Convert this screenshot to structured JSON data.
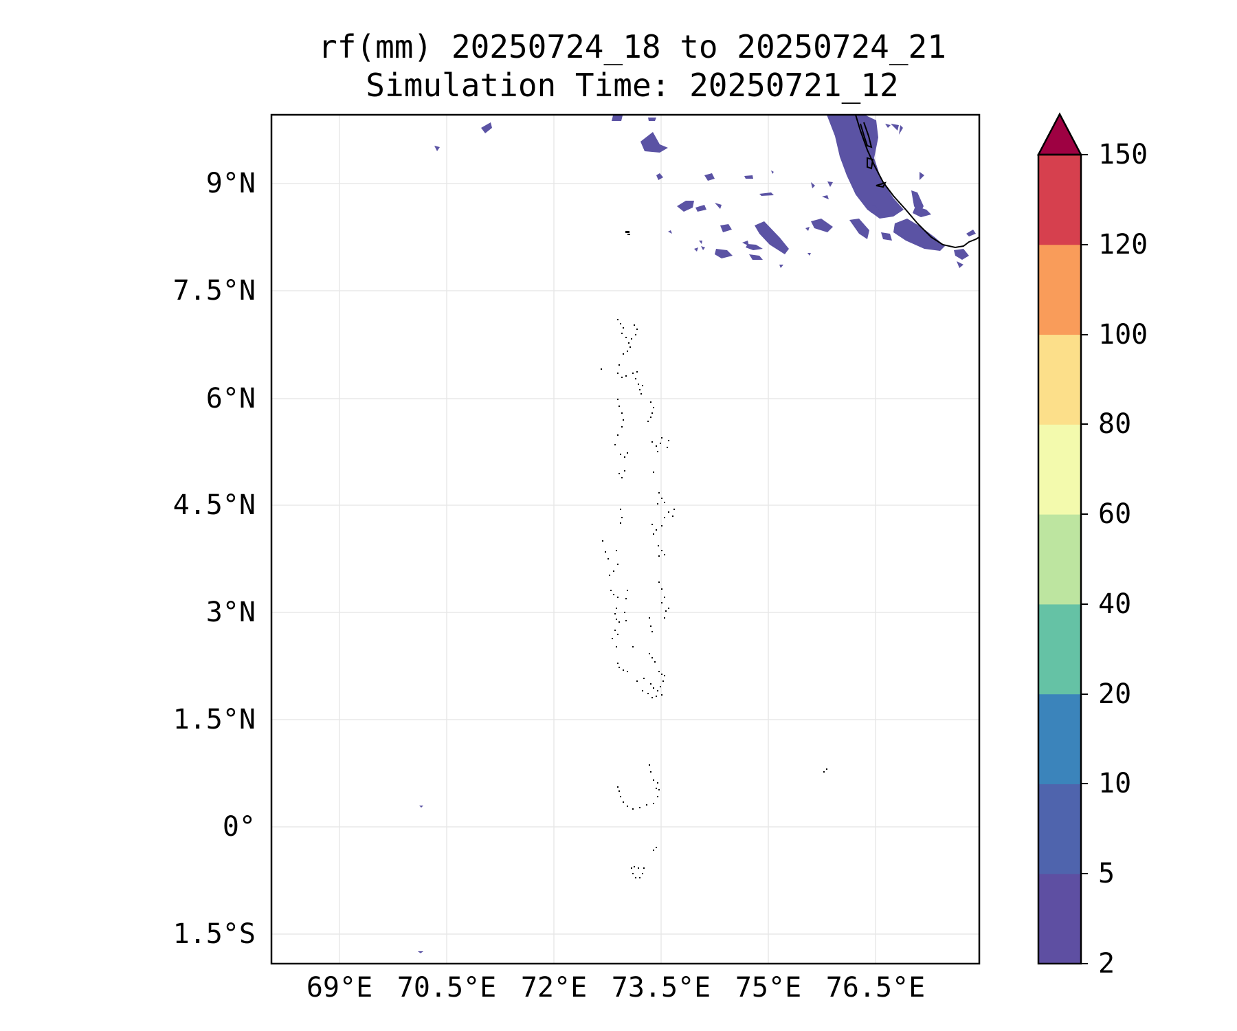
{
  "title": {
    "line1": "rf(mm) 20250724_18 to 20250724_21",
    "line2": "Simulation Time: 20250721_12"
  },
  "map": {
    "lat_ticks": [
      "9°N",
      "7.5°N",
      "6°N",
      "4.5°N",
      "3°N",
      "1.5°N",
      "0°",
      "1.5°S"
    ],
    "lon_ticks": [
      "69°E",
      "70.5°E",
      "72°E",
      "73.5°E",
      "75°E",
      "76.5°E"
    ],
    "extent": {
      "lon": [
        68.05,
        77.95
      ],
      "lat": [
        -1.95,
        9.95
      ]
    },
    "grid": true,
    "rain_color": "#5b53a4",
    "coastline_color": "#000000"
  },
  "colorbar": {
    "levels": [
      "2",
      "5",
      "10",
      "20",
      "40",
      "60",
      "80",
      "100",
      "120",
      "150"
    ],
    "colors": [
      "#5e4fa2",
      "#4f64ad",
      "#3b84bb",
      "#65c2a5",
      "#bde5a0",
      "#f3faad",
      "#fcdf8a",
      "#f99c5a",
      "#d6404e"
    ],
    "extend_color": "#9e0142",
    "extend": "max"
  }
}
